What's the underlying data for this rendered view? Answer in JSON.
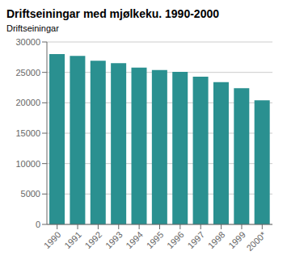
{
  "chart_data": {
    "type": "bar",
    "title": "Driftseiningar med mjølkeku. 1990-2000",
    "ylabel": "Driftseiningar",
    "categories": [
      "1990",
      "1991",
      "1992",
      "1993",
      "1994",
      "1995",
      "1996",
      "1997",
      "1998",
      "1999",
      "2000*"
    ],
    "values": [
      28000,
      27700,
      26900,
      26500,
      25800,
      25400,
      25100,
      24300,
      23400,
      22400,
      20400
    ],
    "color": "#2a9090",
    "ylim": [
      0,
      30000
    ],
    "yticks": [
      0,
      5000,
      10000,
      15000,
      20000,
      25000,
      30000
    ],
    "grid": true
  }
}
